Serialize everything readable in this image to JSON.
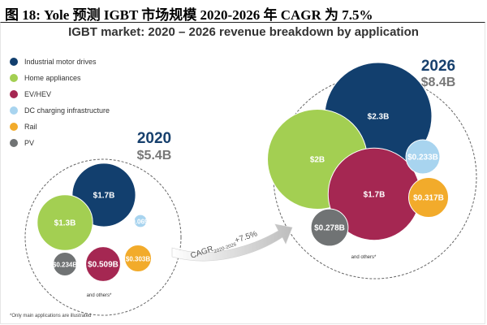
{
  "figure_caption": "图 18: Yole 预测 IGBT 市场规模 2020-2026 年 CAGR 为 7.5%",
  "chart_data": {
    "type": "bubble",
    "title": "IGBT market: 2020 – 2026 revenue breakdown by application",
    "legend": [
      {
        "name": "Industrial motor drives",
        "color": "#123f6e"
      },
      {
        "name": "Home appliances",
        "color": "#a3cf52"
      },
      {
        "name": "EV/HEV",
        "color": "#a52752"
      },
      {
        "name": "DC charging infrastructure",
        "color": "#a8d4ef"
      },
      {
        "name": "Rail",
        "color": "#f2ab2b"
      },
      {
        "name": "PV",
        "color": "#707374"
      }
    ],
    "groups": [
      {
        "year": "2020",
        "total": "$5.4B",
        "others_note": "and others*",
        "bubbles": [
          {
            "application": "Industrial motor drives",
            "value": 1.7,
            "label": "$1.7B"
          },
          {
            "application": "Home appliances",
            "value": 1.3,
            "label": "$1.3B"
          },
          {
            "application": "EV/HEV",
            "value": 0.509,
            "label": "$0.509B"
          },
          {
            "application": "DC charging infrastructure",
            "value": 0.069,
            "label": "$0.069B"
          },
          {
            "application": "Rail",
            "value": 0.303,
            "label": "$0.303B"
          },
          {
            "application": "PV",
            "value": 0.234,
            "label": "$0.234B"
          }
        ]
      },
      {
        "year": "2026",
        "total": "$8.4B",
        "others_note": "and others*",
        "bubbles": [
          {
            "application": "Industrial motor drives",
            "value": 2.3,
            "label": "$2.3B"
          },
          {
            "application": "Home appliances",
            "value": 2.0,
            "label": "$2B"
          },
          {
            "application": "EV/HEV",
            "value": 1.7,
            "label": "$1.7B"
          },
          {
            "application": "DC charging infrastructure",
            "value": 0.233,
            "label": "$0.233B"
          },
          {
            "application": "Rail",
            "value": 0.317,
            "label": "$0.317B"
          },
          {
            "application": "PV",
            "value": 0.278,
            "label": "$0.278B"
          }
        ]
      }
    ],
    "cagr": {
      "prefix": "CAGR",
      "subscript": "2020-2026",
      "value": "+7.5%"
    },
    "footnote": "*Only main applications are illustrated"
  }
}
